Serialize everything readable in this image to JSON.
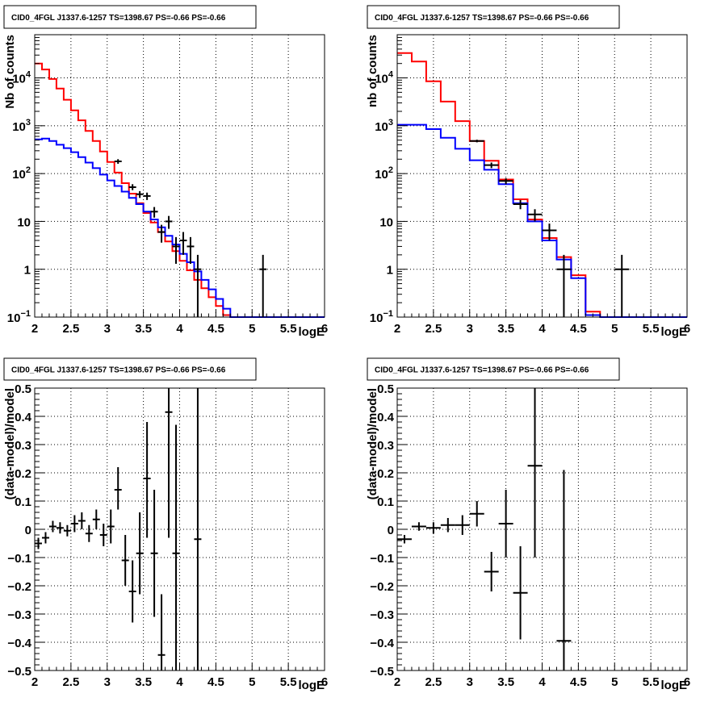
{
  "chart_data": [
    {
      "type": "histogram",
      "title": "CID0_4FGL J1337.6-1257 TS=1398.67 PS=-0.66 PS=-0.66",
      "xlabel": "logE",
      "ylabel": "Nb of counts",
      "xlim": [
        2,
        6
      ],
      "ylim": [
        0.1,
        80000
      ],
      "yscale": "log",
      "grid": true,
      "x_ticks": [
        "2",
        "2.5",
        "3",
        "3.5",
        "4",
        "4.5",
        "5",
        "5.5",
        "6"
      ],
      "y_ticks": [
        {
          "v": 0.1,
          "base": "10",
          "exp": "−1"
        },
        {
          "v": 1,
          "label": "1"
        },
        {
          "v": 10,
          "label": "10"
        },
        {
          "v": 100,
          "base": "10",
          "exp": "2"
        },
        {
          "v": 1000,
          "base": "10",
          "exp": "3"
        },
        {
          "v": 10000,
          "base": "10",
          "exp": "4"
        }
      ],
      "bin_edges": [
        2.0,
        2.1,
        2.2,
        2.3,
        2.4,
        2.5,
        2.6,
        2.7,
        2.8,
        2.9,
        3.0,
        3.1,
        3.2,
        3.3,
        3.4,
        3.5,
        3.6,
        3.7,
        3.8,
        3.9,
        4.0,
        4.1,
        4.2,
        4.3,
        4.4,
        4.5,
        4.6,
        4.7,
        4.8,
        4.9,
        5.0,
        5.1,
        5.2,
        5.3,
        5.4,
        5.5,
        5.6,
        5.7,
        5.8,
        5.9,
        6.0
      ],
      "series": [
        {
          "color": "#ff0000",
          "values": [
            20000,
            15000,
            9500,
            6000,
            3500,
            2100,
            1300,
            780,
            480,
            290,
            175,
            105,
            63,
            38,
            24,
            15,
            9.5,
            6,
            3.8,
            2.4,
            1.5,
            0.95,
            0.6,
            0.4,
            0.26,
            0.17,
            0.11,
            0.09,
            0.09,
            0.09,
            0.09,
            0.09,
            0.09,
            0.09,
            0.09,
            0.09,
            0.09,
            0.09,
            0.09,
            0.09
          ]
        },
        {
          "color": "#0000ff",
          "values": [
            520,
            540,
            480,
            400,
            340,
            280,
            220,
            170,
            130,
            95,
            72,
            55,
            42,
            31,
            23,
            16,
            11,
            7.5,
            5,
            3.3,
            2.1,
            1.4,
            0.9,
            0.6,
            0.38,
            0.24,
            0.15,
            0.1,
            0.09,
            0.09,
            0.09,
            0.09,
            0.09,
            0.09,
            0.09,
            0.09,
            0.09,
            0.09,
            0.09,
            0.09
          ]
        }
      ],
      "data_points": [
        {
          "x": 3.15,
          "y": 180,
          "ylo": 160,
          "yhi": 200
        },
        {
          "x": 3.35,
          "y": 52,
          "ylo": 45,
          "yhi": 60
        },
        {
          "x": 3.45,
          "y": 37,
          "ylo": 31,
          "yhi": 43
        },
        {
          "x": 3.55,
          "y": 34,
          "ylo": 28,
          "yhi": 40
        },
        {
          "x": 3.65,
          "y": 16,
          "ylo": 12,
          "yhi": 20
        },
        {
          "x": 3.75,
          "y": 6,
          "ylo": 3.6,
          "yhi": 8.5
        },
        {
          "x": 3.85,
          "y": 10,
          "ylo": 7,
          "yhi": 13
        },
        {
          "x": 3.95,
          "y": 3,
          "ylo": 1.3,
          "yhi": 4.7
        },
        {
          "x": 4.05,
          "y": 4,
          "ylo": 2,
          "yhi": 6
        },
        {
          "x": 4.15,
          "y": 3,
          "ylo": 1.3,
          "yhi": 4.7
        },
        {
          "x": 4.25,
          "y": 1,
          "ylo": 0.1,
          "yhi": 2
        },
        {
          "x": 5.15,
          "y": 1,
          "ylo": 0.1,
          "yhi": 2
        }
      ]
    },
    {
      "type": "histogram",
      "title": "CID0_4FGL J1337.6-1257 TS=1398.67 PS=-0.66 PS=-0.66",
      "xlabel": "logE",
      "ylabel": "nb of counts",
      "xlim": [
        2,
        6
      ],
      "ylim": [
        0.1,
        80000
      ],
      "yscale": "log",
      "grid": true,
      "x_ticks": [
        "2",
        "2.5",
        "3",
        "3.5",
        "4",
        "4.5",
        "5",
        "5.5",
        "6"
      ],
      "y_ticks": [
        {
          "v": 0.1,
          "base": "10",
          "exp": "−1"
        },
        {
          "v": 1,
          "label": "1"
        },
        {
          "v": 10,
          "label": "10"
        },
        {
          "v": 100,
          "base": "10",
          "exp": "2"
        },
        {
          "v": 1000,
          "base": "10",
          "exp": "3"
        },
        {
          "v": 10000,
          "base": "10",
          "exp": "4"
        }
      ],
      "bin_edges": [
        2.0,
        2.2,
        2.4,
        2.6,
        2.8,
        3.0,
        3.2,
        3.4,
        3.6,
        3.8,
        4.0,
        4.2,
        4.4,
        4.6,
        4.8,
        5.0,
        5.2,
        5.4,
        5.6,
        5.8,
        6.0
      ],
      "series": [
        {
          "color": "#ff0000",
          "values": [
            33000,
            22000,
            8500,
            3200,
            1250,
            480,
            185,
            75,
            29,
            11,
            4.5,
            1.8,
            0.75,
            0.13,
            0.09,
            0.09,
            0.09,
            0.09,
            0.09,
            0.09
          ]
        },
        {
          "color": "#0000ff",
          "values": [
            1050,
            1050,
            850,
            560,
            330,
            190,
            120,
            60,
            24,
            10,
            4,
            1.6,
            0.65,
            0.11,
            0.09,
            0.09,
            0.09,
            0.09,
            0.09,
            0.09
          ]
        }
      ],
      "data_points": [
        {
          "x": 3.1,
          "y": 480,
          "ylo": 450,
          "yhi": 510
        },
        {
          "x": 3.3,
          "y": 150,
          "ylo": 130,
          "yhi": 170
        },
        {
          "x": 3.5,
          "y": 70,
          "ylo": 60,
          "yhi": 80
        },
        {
          "x": 3.7,
          "y": 23,
          "ylo": 18,
          "yhi": 28
        },
        {
          "x": 3.9,
          "y": 14,
          "ylo": 10,
          "yhi": 18
        },
        {
          "x": 4.1,
          "y": 6.5,
          "ylo": 4,
          "yhi": 9
        },
        {
          "x": 4.3,
          "y": 1,
          "ylo": 0.1,
          "yhi": 2
        },
        {
          "x": 5.1,
          "y": 1,
          "ylo": 0.1,
          "yhi": 2
        }
      ]
    },
    {
      "type": "scatter",
      "title": "CID0_4FGL J1337.6-1257 TS=1398.67 PS=-0.66 PS=-0.66",
      "xlabel": "logE",
      "ylabel": "(data-model)/model",
      "xlim": [
        2,
        6
      ],
      "ylim": [
        -0.5,
        0.5
      ],
      "grid": true,
      "x_ticks": [
        "2",
        "2.5",
        "3",
        "3.5",
        "4",
        "4.5",
        "5",
        "5.5",
        "6"
      ],
      "y_ticks": [
        "−0.5",
        "−0.4",
        "−0.3",
        "−0.2",
        "−0.1",
        "0",
        "0.1",
        "0.2",
        "0.3",
        "0.4",
        "0.5"
      ],
      "xerr": 0.05,
      "data_points": [
        {
          "x": 2.05,
          "y": -0.05,
          "ylo": -0.07,
          "yhi": -0.03
        },
        {
          "x": 2.15,
          "y": -0.03,
          "ylo": -0.05,
          "yhi": -0.01
        },
        {
          "x": 2.25,
          "y": 0.01,
          "ylo": -0.01,
          "yhi": 0.03
        },
        {
          "x": 2.35,
          "y": 0.005,
          "ylo": -0.015,
          "yhi": 0.025
        },
        {
          "x": 2.45,
          "y": -0.005,
          "ylo": -0.025,
          "yhi": 0.015
        },
        {
          "x": 2.55,
          "y": 0.02,
          "ylo": -0.01,
          "yhi": 0.05
        },
        {
          "x": 2.65,
          "y": 0.03,
          "ylo": 0.0,
          "yhi": 0.06
        },
        {
          "x": 2.75,
          "y": -0.015,
          "ylo": -0.045,
          "yhi": 0.015
        },
        {
          "x": 2.85,
          "y": 0.035,
          "ylo": 0.0,
          "yhi": 0.07
        },
        {
          "x": 2.95,
          "y": -0.02,
          "ylo": -0.06,
          "yhi": 0.02
        },
        {
          "x": 3.05,
          "y": 0.01,
          "ylo": -0.05,
          "yhi": 0.07
        },
        {
          "x": 3.15,
          "y": 0.14,
          "ylo": 0.07,
          "yhi": 0.22
        },
        {
          "x": 3.25,
          "y": -0.11,
          "ylo": -0.2,
          "yhi": -0.02
        },
        {
          "x": 3.35,
          "y": -0.22,
          "ylo": -0.33,
          "yhi": -0.11
        },
        {
          "x": 3.45,
          "y": -0.085,
          "ylo": -0.23,
          "yhi": 0.06
        },
        {
          "x": 3.55,
          "y": 0.18,
          "ylo": -0.03,
          "yhi": 0.38
        },
        {
          "x": 3.65,
          "y": -0.085,
          "ylo": -0.31,
          "yhi": 0.14
        },
        {
          "x": 3.75,
          "y": -0.445,
          "ylo": -0.5,
          "yhi": -0.23
        },
        {
          "x": 3.85,
          "y": 0.415,
          "ylo": -0.03,
          "yhi": 0.5
        },
        {
          "x": 3.95,
          "y": -0.085,
          "ylo": -0.5,
          "yhi": 0.37
        },
        {
          "x": 4.25,
          "y": -0.035,
          "ylo": -0.5,
          "yhi": 0.5
        }
      ]
    },
    {
      "type": "scatter",
      "title": "CID0_4FGL J1337.6-1257 TS=1398.67 PS=-0.66 PS=-0.66",
      "xlabel": "logE",
      "ylabel": "(data-model)/model",
      "xlim": [
        2,
        6
      ],
      "ylim": [
        -0.5,
        0.5
      ],
      "grid": true,
      "x_ticks": [
        "2",
        "2.5",
        "3",
        "3.5",
        "4",
        "4.5",
        "5",
        "5.5",
        "6"
      ],
      "y_ticks": [
        "−0.5",
        "−0.4",
        "−0.3",
        "−0.2",
        "−0.1",
        "0",
        "0.1",
        "0.2",
        "0.3",
        "0.4",
        "0.5"
      ],
      "xerr": 0.1,
      "data_points": [
        {
          "x": 2.1,
          "y": -0.035,
          "ylo": -0.05,
          "yhi": -0.02
        },
        {
          "x": 2.3,
          "y": 0.01,
          "ylo": -0.005,
          "yhi": 0.025
        },
        {
          "x": 2.5,
          "y": 0.005,
          "ylo": -0.015,
          "yhi": 0.025
        },
        {
          "x": 2.7,
          "y": 0.015,
          "ylo": -0.01,
          "yhi": 0.04
        },
        {
          "x": 2.9,
          "y": 0.015,
          "ylo": -0.02,
          "yhi": 0.05
        },
        {
          "x": 3.1,
          "y": 0.055,
          "ylo": 0.01,
          "yhi": 0.1
        },
        {
          "x": 3.3,
          "y": -0.15,
          "ylo": -0.22,
          "yhi": -0.08
        },
        {
          "x": 3.5,
          "y": 0.02,
          "ylo": -0.1,
          "yhi": 0.14
        },
        {
          "x": 3.7,
          "y": -0.225,
          "ylo": -0.39,
          "yhi": -0.06
        },
        {
          "x": 3.9,
          "y": 0.225,
          "ylo": -0.1,
          "yhi": 0.5
        },
        {
          "x": 4.3,
          "y": -0.395,
          "ylo": -0.5,
          "yhi": 0.21
        }
      ]
    }
  ]
}
